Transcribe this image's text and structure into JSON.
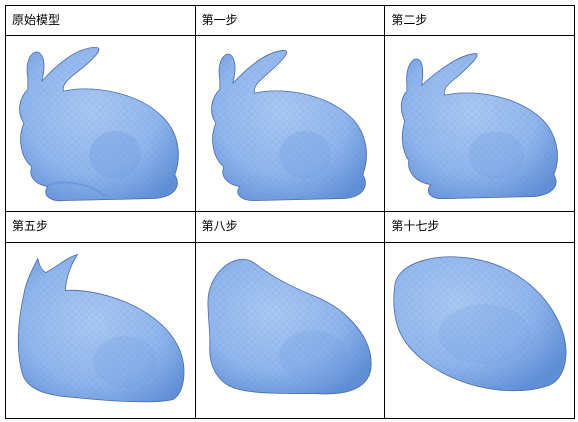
{
  "cells": [
    {
      "label": "原始模型",
      "shape": "bunny-original-icon"
    },
    {
      "label": "第一步",
      "shape": "bunny-step1-icon"
    },
    {
      "label": "第二步",
      "shape": "bunny-step2-icon"
    },
    {
      "label": "第五步",
      "shape": "bunny-step5-icon"
    },
    {
      "label": "第八步",
      "shape": "bunny-step8-icon"
    },
    {
      "label": "第十七步",
      "shape": "bunny-step17-icon"
    }
  ],
  "colors": {
    "mesh_fill": "#8fb6ee",
    "mesh_shade": "#5f8fd8",
    "mesh_edge": "#6b7a9a",
    "border": "#000000"
  }
}
